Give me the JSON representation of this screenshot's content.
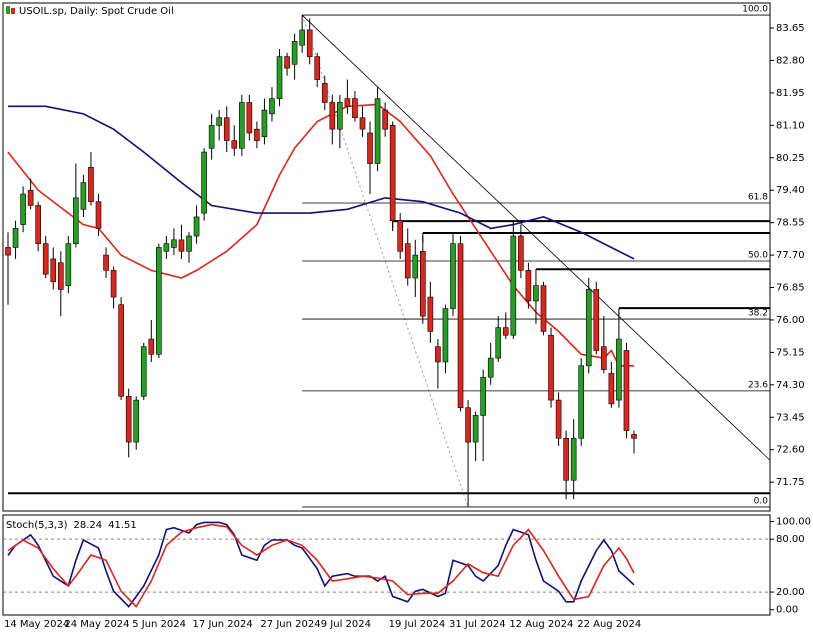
{
  "chart_data": [
    {
      "type": "candlestick",
      "title": "USOIL.sp, Daily:  Spot Crude Oil",
      "categories": [
        "14 May 2024",
        null,
        null,
        null,
        null,
        null,
        null,
        null,
        "24 May 2024",
        null,
        null,
        null,
        null,
        null,
        null,
        null,
        null,
        "5 Jun 2024",
        null,
        null,
        null,
        null,
        null,
        null,
        null,
        "17 Jun 2024",
        null,
        null,
        null,
        null,
        null,
        null,
        null,
        null,
        "27 Jun 2024",
        null,
        null,
        null,
        null,
        null,
        null,
        null,
        "9 Jul 2024",
        null,
        null,
        null,
        null,
        null,
        null,
        null,
        null,
        "19 Jul 2024",
        null,
        null,
        null,
        null,
        null,
        null,
        null,
        "31 Jul 2024",
        null,
        null,
        null,
        null,
        null,
        null,
        null,
        "12 Aug 2024",
        null,
        null,
        null,
        null,
        null,
        null,
        null,
        null,
        "22 Aug 2024",
        null,
        null,
        null,
        null,
        null,
        null,
        null
      ],
      "open": [
        77.9,
        77.9,
        78.5,
        79.4,
        79.0,
        78.0,
        77.6,
        77.5,
        76.9,
        78.0,
        78.9,
        80.0,
        79.1,
        77.7,
        77.3,
        76.4,
        74.0,
        72.8,
        74.0,
        75.5,
        75.1,
        77.8,
        77.9,
        78.1,
        77.8,
        78.2,
        78.8,
        80.5,
        81.1,
        81.3,
        80.7,
        80.5,
        81.7,
        81.0,
        80.8,
        81.4,
        81.8,
        82.9,
        82.7,
        83.2,
        83.6,
        82.9,
        82.2,
        81.7,
        81.0,
        81.8,
        81.8,
        81.3,
        80.9,
        80.1,
        81.5,
        81.1,
        78.6,
        78.0,
        77.1,
        77.8,
        76.6,
        75.3,
        74.9,
        76.3,
        78.0,
        73.7,
        72.8,
        73.5,
        74.5,
        75.0,
        75.8,
        75.6,
        78.2,
        77.3,
        76.5,
        76.9,
        75.6,
        73.9,
        72.9,
        71.8,
        72.9,
        74.8,
        76.8,
        75.3,
        74.6,
        73.9,
        75.2,
        73.0
      ],
      "high": [
        78.3,
        78.6,
        79.5,
        79.7,
        79.1,
        78.2,
        77.9,
        77.8,
        78.2,
        80.1,
        79.8,
        80.4,
        79.3,
        77.9,
        77.4,
        76.6,
        74.2,
        74.0,
        75.4,
        76.0,
        78.0,
        78.2,
        78.4,
        78.5,
        78.3,
        79.0,
        80.5,
        81.4,
        81.5,
        81.6,
        81.1,
        81.9,
        81.9,
        81.2,
        81.8,
        82.1,
        83.1,
        83.0,
        83.5,
        83.99,
        83.9,
        83.0,
        82.4,
        81.9,
        81.9,
        82.3,
        82.0,
        81.6,
        81.2,
        82.1,
        81.7,
        81.2,
        78.8,
        78.4,
        78.1,
        78.2,
        77.0,
        75.5,
        76.4,
        78.3,
        78.2,
        73.9,
        73.6,
        74.7,
        75.4,
        76.1,
        76.2,
        78.6,
        78.5,
        77.5,
        77.1,
        77.0,
        75.8,
        74.1,
        73.1,
        73.4,
        75.0,
        77.1,
        77.0,
        76.1,
        74.9,
        76.2,
        75.4,
        73.1
      ],
      "low": [
        76.4,
        77.6,
        78.3,
        78.9,
        77.8,
        77.1,
        76.8,
        76.1,
        76.7,
        77.9,
        78.7,
        79.0,
        78.2,
        77.1,
        76.3,
        73.9,
        72.4,
        72.6,
        73.9,
        74.9,
        75.0,
        77.6,
        77.7,
        77.6,
        77.5,
        78.0,
        78.6,
        80.2,
        80.7,
        80.4,
        80.3,
        80.3,
        80.7,
        80.5,
        80.6,
        81.2,
        81.6,
        82.4,
        82.3,
        83.0,
        82.7,
        82.1,
        81.5,
        80.6,
        80.5,
        81.4,
        81.2,
        80.8,
        79.3,
        79.9,
        80.8,
        78.4,
        77.6,
        76.9,
        76.6,
        75.9,
        75.4,
        74.2,
        74.6,
        76.1,
        73.6,
        71.1,
        72.3,
        72.3,
        74.3,
        74.9,
        75.5,
        75.5,
        77.1,
        76.3,
        75.9,
        75.6,
        73.7,
        72.7,
        71.3,
        71.3,
        72.7,
        74.6,
        75.1,
        74.6,
        73.7,
        73.7,
        72.9,
        72.5
      ],
      "close": [
        77.7,
        78.4,
        79.3,
        79.0,
        78.0,
        77.2,
        77.0,
        76.8,
        78.0,
        79.2,
        79.6,
        79.1,
        78.4,
        77.3,
        76.6,
        74.0,
        72.8,
        73.9,
        75.3,
        75.1,
        77.9,
        78.0,
        78.1,
        77.8,
        78.2,
        78.7,
        80.4,
        81.1,
        81.3,
        80.7,
        80.5,
        81.7,
        80.9,
        80.7,
        81.5,
        81.8,
        82.9,
        82.6,
        83.3,
        83.6,
        82.9,
        82.3,
        81.7,
        81.0,
        81.7,
        81.6,
        81.3,
        81.0,
        80.1,
        81.8,
        81.0,
        78.6,
        77.8,
        77.1,
        77.7,
        76.1,
        75.7,
        74.9,
        76.3,
        78.0,
        73.7,
        72.8,
        73.5,
        74.5,
        75.0,
        75.8,
        75.6,
        78.2,
        77.3,
        76.5,
        76.9,
        75.7,
        73.9,
        72.9,
        71.8,
        72.9,
        74.8,
        76.8,
        75.2,
        74.7,
        73.8,
        75.5,
        73.1,
        72.9
      ],
      "up_color": "#22a022",
      "down_color": "#e2231a",
      "ylim": [
        71.02,
        84.28
      ],
      "yticks": [
        83.65,
        {
          "value": 82.8,
          "label": "82.80"
        },
        81.95,
        {
          "value": 81.1,
          "label": "81.10"
        },
        80.25,
        {
          "value": 79.4,
          "label": "79.40"
        },
        78.55,
        {
          "value": 77.7,
          "label": "77.70"
        },
        76.85,
        {
          "value": 76,
          "label": "76.00"
        },
        75.15,
        {
          "value": 74.3,
          "label": "74.30"
        },
        73.45,
        {
          "value": 72.6,
          "label": "72.60"
        },
        71.75
      ],
      "moving_averages": [
        {
          "color": "#e2231a",
          "x": [
            0,
            4,
            10,
            12,
            15,
            19,
            23,
            25,
            29,
            33,
            36,
            38,
            41,
            45,
            49,
            52,
            56,
            59,
            63,
            67,
            70,
            73,
            76,
            79,
            80,
            81,
            83
          ],
          "values": [
            80.4,
            79.4,
            78.5,
            78.4,
            77.7,
            77.3,
            77.1,
            77.3,
            77.8,
            78.5,
            79.8,
            80.5,
            81.2,
            81.6,
            81.65,
            81.2,
            80.3,
            79.3,
            78.1,
            76.9,
            76.2,
            75.7,
            75.1,
            75.0,
            75.2,
            74.8,
            74.8
          ]
        },
        {
          "color": "#10107a",
          "x": [
            0,
            5,
            10,
            14,
            18,
            23,
            27,
            33,
            40,
            45,
            50,
            55,
            60,
            64,
            67,
            71,
            76,
            80,
            83
          ],
          "values": [
            81.6,
            81.6,
            81.4,
            81.0,
            80.4,
            79.6,
            79.0,
            78.8,
            78.8,
            78.9,
            79.2,
            79.1,
            78.8,
            78.4,
            78.5,
            78.7,
            78.3,
            77.9,
            77.6
          ]
        }
      ],
      "fibonacci": {
        "high": 83.99,
        "low": 71.1,
        "x": [
          39,
          61
        ],
        "levels": [
          {
            "value": 100,
            "label": "100.0"
          },
          {
            "value": 61.8,
            "label": "61.8"
          },
          {
            "value": 50,
            "label": "50.0"
          },
          {
            "value": 38.2,
            "label": "38.2"
          },
          {
            "value": 23.6,
            "label": "23.6"
          },
          {
            "value": 0,
            "label": "0.0"
          }
        ]
      },
      "trendline": {
        "x": [
          39,
          101
        ],
        "values": [
          83.99,
          72.33
        ]
      },
      "levels": [
        {
          "value": 78.59,
          "x": 51
        },
        {
          "value": 78.28,
          "x": 55
        },
        {
          "value": 77.33,
          "x": 70
        },
        {
          "value": 76.31,
          "x": 81
        },
        {
          "value": 71.46,
          "x": 0
        }
      ]
    },
    {
      "type": "line",
      "title": "Stoch(5,3,3)",
      "ylim": [
        -6,
        104
      ],
      "yticks": [
        {
          "value": 100,
          "label": "100.00"
        },
        {
          "value": 80,
          "label": "80.00"
        },
        {
          "value": 20,
          "label": "20.00"
        },
        {
          "value": 0,
          "label": "0.00"
        }
      ],
      "levels": [
        80,
        20
      ],
      "series": [
        {
          "color": "#10107a",
          "x": [
            0,
            1,
            3,
            4,
            6,
            8,
            9,
            10,
            12,
            13,
            14,
            16,
            17,
            18,
            20,
            21,
            22,
            24,
            25,
            26,
            28,
            29,
            30,
            31,
            33,
            34,
            35,
            37,
            38,
            39,
            41,
            42,
            43,
            45,
            46,
            48,
            49,
            50,
            51,
            53,
            54,
            55,
            57,
            58,
            59,
            61,
            62,
            63,
            65,
            66,
            67,
            69,
            70,
            71,
            73,
            74,
            75,
            76,
            78,
            79,
            80,
            81,
            83
          ],
          "values": [
            61.6,
            73,
            85,
            73,
            38,
            27,
            56,
            79,
            70,
            44,
            21,
            3.5,
            15,
            27,
            62,
            91,
            93,
            87,
            96.5,
            99,
            99,
            96.5,
            85,
            62,
            56,
            73,
            79,
            79,
            73,
            70,
            46.5,
            27,
            38,
            41,
            38,
            38,
            32.5,
            38,
            15,
            9,
            21,
            23,
            15,
            18.6,
            56,
            50,
            38,
            32.5,
            50,
            73,
            91,
            85,
            56,
            32.5,
            21,
            9,
            9,
            32.5,
            67,
            79,
            67,
            44,
            28.24
          ]
        },
        {
          "color": "#e2231a",
          "x": [
            0,
            2,
            4,
            6,
            8,
            9,
            11,
            13,
            15,
            17,
            19,
            21,
            23,
            25,
            27,
            29,
            31,
            33,
            35,
            37,
            39,
            41,
            43,
            45,
            47,
            49,
            51,
            53,
            55,
            57,
            59,
            61,
            63,
            65,
            67,
            69,
            71,
            73,
            75,
            77,
            79,
            81,
            82,
            83
          ],
          "values": [
            67,
            79,
            70,
            46.5,
            27,
            38,
            62,
            56,
            21,
            3.5,
            32.5,
            73,
            88,
            93,
            96.5,
            94,
            73,
            62,
            73,
            79,
            73,
            56,
            32.5,
            35,
            38,
            36,
            32.5,
            17,
            18.6,
            18.6,
            32.5,
            52,
            42,
            38,
            73,
            91,
            67,
            38,
            11.6,
            15,
            50,
            70,
            58,
            41.51
          ]
        }
      ]
    }
  ]
}
